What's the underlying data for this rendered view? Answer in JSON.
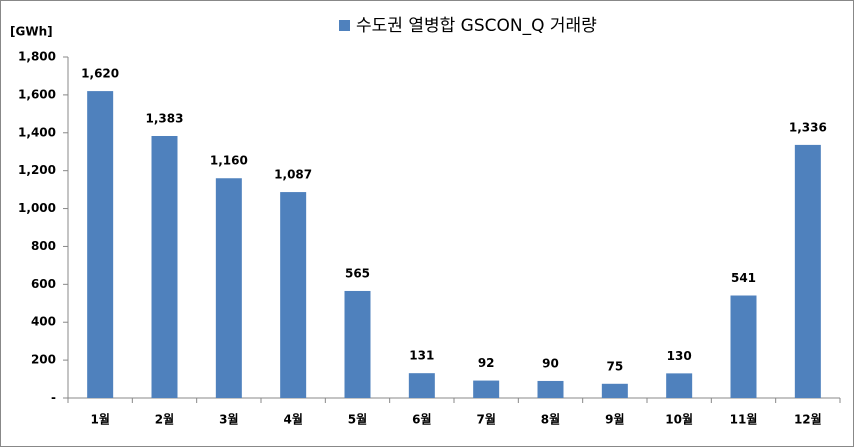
{
  "chart_data": {
    "type": "bar",
    "y_axis_label": "[GWh]",
    "categories": [
      "1월",
      "2월",
      "3월",
      "4월",
      "5월",
      "6월",
      "7월",
      "8월",
      "9월",
      "10월",
      "11월",
      "12월"
    ],
    "series": [
      {
        "name": "수도권 열병합 GSCON_Q 거래량",
        "color": "#4f81bd",
        "values": [
          1620,
          1383,
          1160,
          1087,
          565,
          131,
          92,
          90,
          75,
          130,
          541,
          1336
        ],
        "value_labels": [
          "1,620",
          "1,383",
          "1,160",
          "1,087",
          "565",
          "131",
          "92",
          "90",
          "75",
          "130",
          "541",
          "1,336"
        ]
      }
    ],
    "ylim": [
      0,
      1800
    ],
    "yticks": [
      {
        "value": 0,
        "label": "-"
      },
      200,
      400,
      600,
      800,
      {
        "value": 1000,
        "label": "1,000"
      },
      {
        "value": 1200,
        "label": "1,200"
      },
      {
        "value": 1400,
        "label": "1,400"
      },
      {
        "value": 1600,
        "label": "1,600"
      },
      {
        "value": 1800,
        "label": "1,800"
      }
    ],
    "grid": false
  }
}
